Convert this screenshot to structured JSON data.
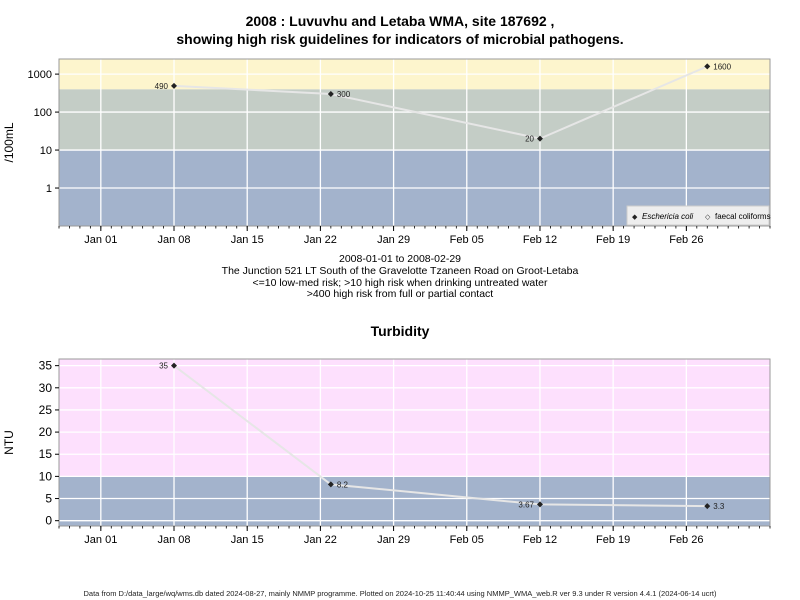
{
  "chart_data": [
    {
      "type": "line",
      "title": "2008 : Luvuvhu and Letaba WMA, site 187692 ,",
      "title2": "showing high risk guidelines for indicators of microbial pathogens.",
      "ylabel": "/100mL",
      "yscale": "log",
      "ylim": [
        0.1,
        2500
      ],
      "yticks": [
        1,
        10,
        100,
        1000
      ],
      "ytick_labels": [
        "1",
        "10",
        "100",
        "1000"
      ],
      "xlim": [
        "2007-12-28",
        "2008-03-05"
      ],
      "xticks": [
        "2008-01-01",
        "2008-01-08",
        "2008-01-15",
        "2008-01-22",
        "2008-01-29",
        "2008-02-05",
        "2008-02-12",
        "2008-02-19",
        "2008-02-26"
      ],
      "xtick_labels": [
        "Jan 01",
        "Jan 08",
        "Jan 15",
        "Jan 22",
        "Jan 29",
        "Feb 05",
        "Feb 12",
        "Feb 19",
        "Feb 26"
      ],
      "bands": [
        {
          "from": 0.1,
          "to": 10,
          "color": "#a3b3cc"
        },
        {
          "from": 10,
          "to": 400,
          "color": "#c4cdc6"
        },
        {
          "from": 400,
          "to": 2500,
          "color": "#fdf5cd"
        }
      ],
      "series": [
        {
          "name": "Eschericia coli",
          "line_color": "#e6e6e6",
          "points": [
            {
              "x": "2008-01-08",
              "y": 490,
              "label": "490",
              "label_side": "left"
            },
            {
              "x": "2008-01-23",
              "y": 300,
              "label": "300",
              "label_side": "right"
            },
            {
              "x": "2008-02-12",
              "y": 20,
              "label": "20",
              "label_side": "left"
            },
            {
              "x": "2008-02-28",
              "y": 1600,
              "label": "1600",
              "label_side": "right"
            }
          ]
        }
      ],
      "legend": {
        "position": "bottom-right",
        "entries": [
          {
            "label": "Eschericia coli",
            "marker": "◆",
            "italic": true
          },
          {
            "label": "faecal coliforms",
            "marker": "◇",
            "italic": false
          }
        ]
      }
    },
    {
      "type": "line",
      "title": "Turbidity",
      "ylabel": "NTU",
      "yscale": "linear",
      "ylim": [
        -1.2,
        36.5
      ],
      "yticks": [
        0,
        5,
        10,
        15,
        20,
        25,
        30,
        35
      ],
      "ytick_labels": [
        "0",
        "5",
        "10",
        "15",
        "20",
        "25",
        "30",
        "35"
      ],
      "xlim": [
        "2007-12-28",
        "2008-03-05"
      ],
      "xticks": [
        "2008-01-01",
        "2008-01-08",
        "2008-01-15",
        "2008-01-22",
        "2008-01-29",
        "2008-02-05",
        "2008-02-12",
        "2008-02-19",
        "2008-02-26"
      ],
      "xtick_labels": [
        "Jan 01",
        "Jan 08",
        "Jan 15",
        "Jan 22",
        "Jan 29",
        "Feb 05",
        "Feb 12",
        "Feb 19",
        "Feb 26"
      ],
      "bands": [
        {
          "from": -1.2,
          "to": 10,
          "color": "#a3b3cc"
        },
        {
          "from": 10,
          "to": 36.5,
          "color": "#fde0fd"
        }
      ],
      "series": [
        {
          "name": "",
          "line_color": "#e6e6e6",
          "points": [
            {
              "x": "2008-01-08",
              "y": 35,
              "label": "35",
              "label_side": "left"
            },
            {
              "x": "2008-01-23",
              "y": 8.2,
              "label": "8.2",
              "label_side": "right"
            },
            {
              "x": "2008-02-12",
              "y": 3.67,
              "label": "3.67",
              "label_side": "left"
            },
            {
              "x": "2008-02-28",
              "y": 3.3,
              "label": "3.3",
              "label_side": "right"
            }
          ]
        }
      ]
    }
  ],
  "info": {
    "date_range": "2008-01-01 to 2008-02-29",
    "site_name": "The Junction 521 LT South of the Gravelotte Tzaneen Road on Groot-Letaba",
    "risk_note_1": "<=10 low-med risk; >10 high risk when drinking untreated water",
    "risk_note_2": ">400 high risk from full or partial contact"
  },
  "footer": "Data from D:/data_large/wq/wms.db dated 2024-08-27, mainly NMMP programme. Plotted on 2024-10-25 11:40:44 using NMMP_WMA_web.R ver 9.3 under R version 4.4.1 (2024-06-14 ucrt)"
}
